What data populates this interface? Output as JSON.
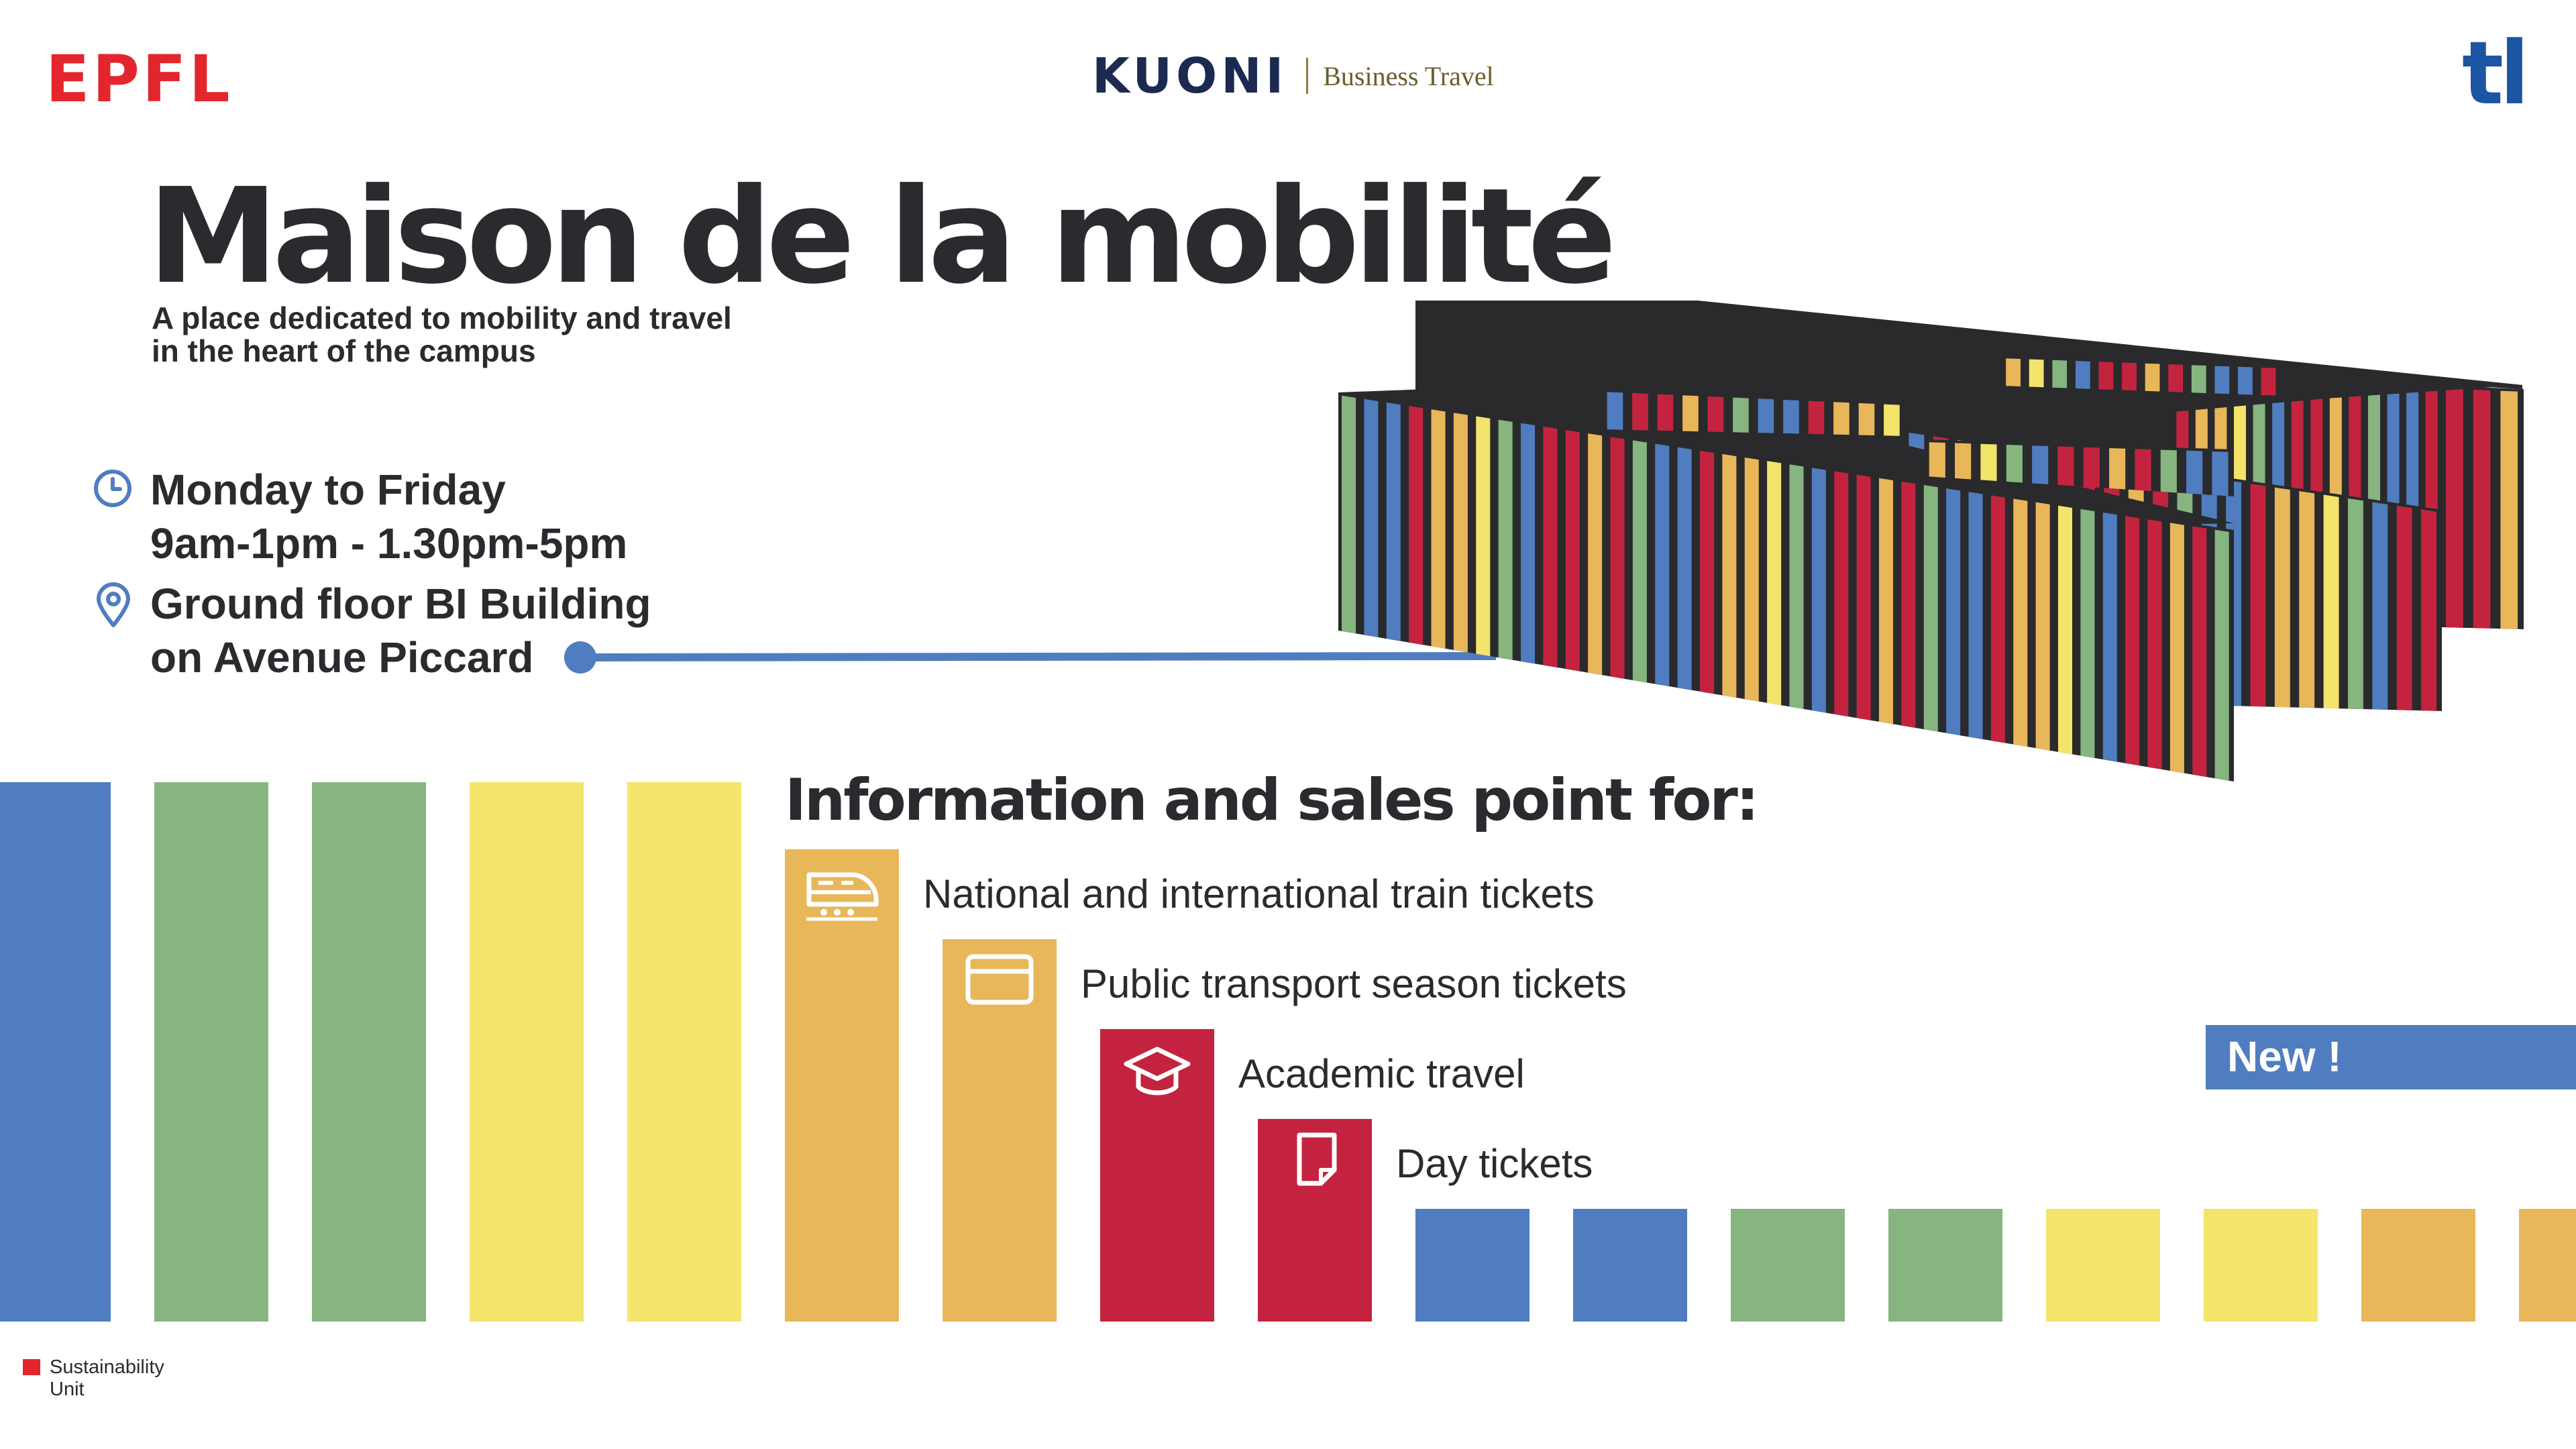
{
  "logos": {
    "epfl": "EPFL",
    "kuoni": "KUONI",
    "kuoni_sub": "Business Travel",
    "tl": "tl"
  },
  "title": "Maison de la mobilité",
  "subtitle_lines": [
    "A place dedicated to mobility and travel",
    "in the heart of the campus"
  ],
  "schedule": {
    "icon": "clock-icon",
    "days": "Monday to Friday",
    "hours": "9am-1pm - 1.30pm-5pm"
  },
  "location": {
    "icon": "map-pin-icon",
    "line1": "Ground floor BI Building",
    "line2": "on Avenue Piccard"
  },
  "sales_heading": "Information and sales point for:",
  "services": [
    {
      "label": "National and international train tickets",
      "icon": "train-icon",
      "color": "#e8b75a"
    },
    {
      "label": "Public transport season tickets",
      "icon": "card-icon",
      "color": "#e8b75a"
    },
    {
      "label": "Academic travel",
      "icon": "graduation-cap-icon",
      "color": "#c4233f"
    },
    {
      "label": "Day tickets",
      "icon": "ticket-icon",
      "color": "#c4233f"
    }
  ],
  "new_badge": "New !",
  "footer": {
    "line1": "Sustainability",
    "line2": "Unit"
  },
  "colors": {
    "blue": "#4f7dc0",
    "green": "#86b57f",
    "yellow": "#f3e46b",
    "orange": "#e8b75a",
    "red": "#c4233f",
    "dark": "#2b2b2f",
    "epfl_red": "#e3262d"
  }
}
